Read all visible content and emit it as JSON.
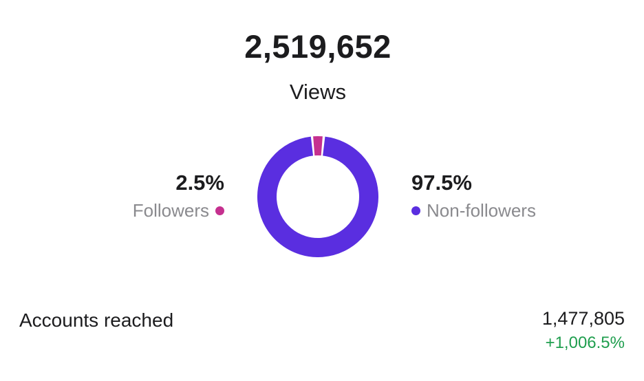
{
  "colors": {
    "followers": "#c5308f",
    "non_followers": "#5a2ee0",
    "positive_change": "#1f9e4e",
    "text_primary": "#1c1c1e",
    "text_secondary": "#8a8a8e",
    "background": "#ffffff"
  },
  "summary": {
    "total_views": "2,519,652",
    "views_label": "Views"
  },
  "chart_data": {
    "type": "pie",
    "donut": true,
    "title": "Views",
    "total_views": 2519652,
    "segments": [
      {
        "label": "Followers",
        "value": 2.5,
        "display": "2.5%",
        "color": "#c5308f"
      },
      {
        "label": "Non-followers",
        "value": 97.5,
        "display": "97.5%",
        "color": "#5a2ee0"
      }
    ],
    "legend_position": "sides"
  },
  "footer": {
    "label": "Accounts reached",
    "value": "1,477,805",
    "change": "+1,006.5%"
  }
}
